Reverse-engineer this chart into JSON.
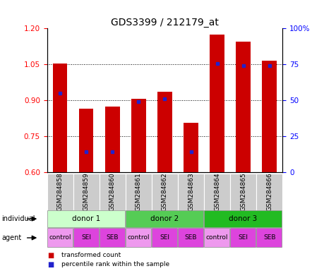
{
  "title": "GDS3399 / 212179_at",
  "samples": [
    "GSM284858",
    "GSM284859",
    "GSM284860",
    "GSM284861",
    "GSM284862",
    "GSM284863",
    "GSM284864",
    "GSM284865",
    "GSM284866"
  ],
  "transformed_count": [
    1.055,
    0.865,
    0.875,
    0.905,
    0.935,
    0.805,
    1.175,
    1.145,
    1.065
  ],
  "percentile_rank": [
    0.93,
    0.685,
    0.685,
    0.895,
    0.905,
    0.685,
    1.055,
    1.045,
    1.045
  ],
  "ylim": [
    0.6,
    1.2
  ],
  "yticks_left": [
    0.6,
    0.75,
    0.9,
    1.05,
    1.2
  ],
  "yticks_right": [
    0,
    25,
    50,
    75,
    100
  ],
  "bar_color": "#cc0000",
  "percentile_color": "#2222cc",
  "bar_width": 0.55,
  "donors": [
    {
      "label": "donor 1",
      "span": [
        0,
        3
      ],
      "color": "#ccffcc"
    },
    {
      "label": "donor 2",
      "span": [
        3,
        6
      ],
      "color": "#55cc55"
    },
    {
      "label": "donor 3",
      "span": [
        6,
        9
      ],
      "color": "#22bb22"
    }
  ],
  "agents": [
    "control",
    "SEI",
    "SEB",
    "control",
    "SEI",
    "SEB",
    "control",
    "SEI",
    "SEB"
  ],
  "agent_colors": {
    "control": "#ee99ee",
    "SEI": "#dd44dd",
    "SEB": "#dd44dd"
  },
  "individual_label": "individual",
  "agent_label": "agent",
  "legend_items": [
    {
      "label": "transformed count",
      "color": "#cc0000"
    },
    {
      "label": "percentile rank within the sample",
      "color": "#2222cc"
    }
  ],
  "sample_box_color": "#cccccc",
  "title_fontsize": 10,
  "tick_fontsize": 7.5,
  "sample_fontsize": 6.5
}
